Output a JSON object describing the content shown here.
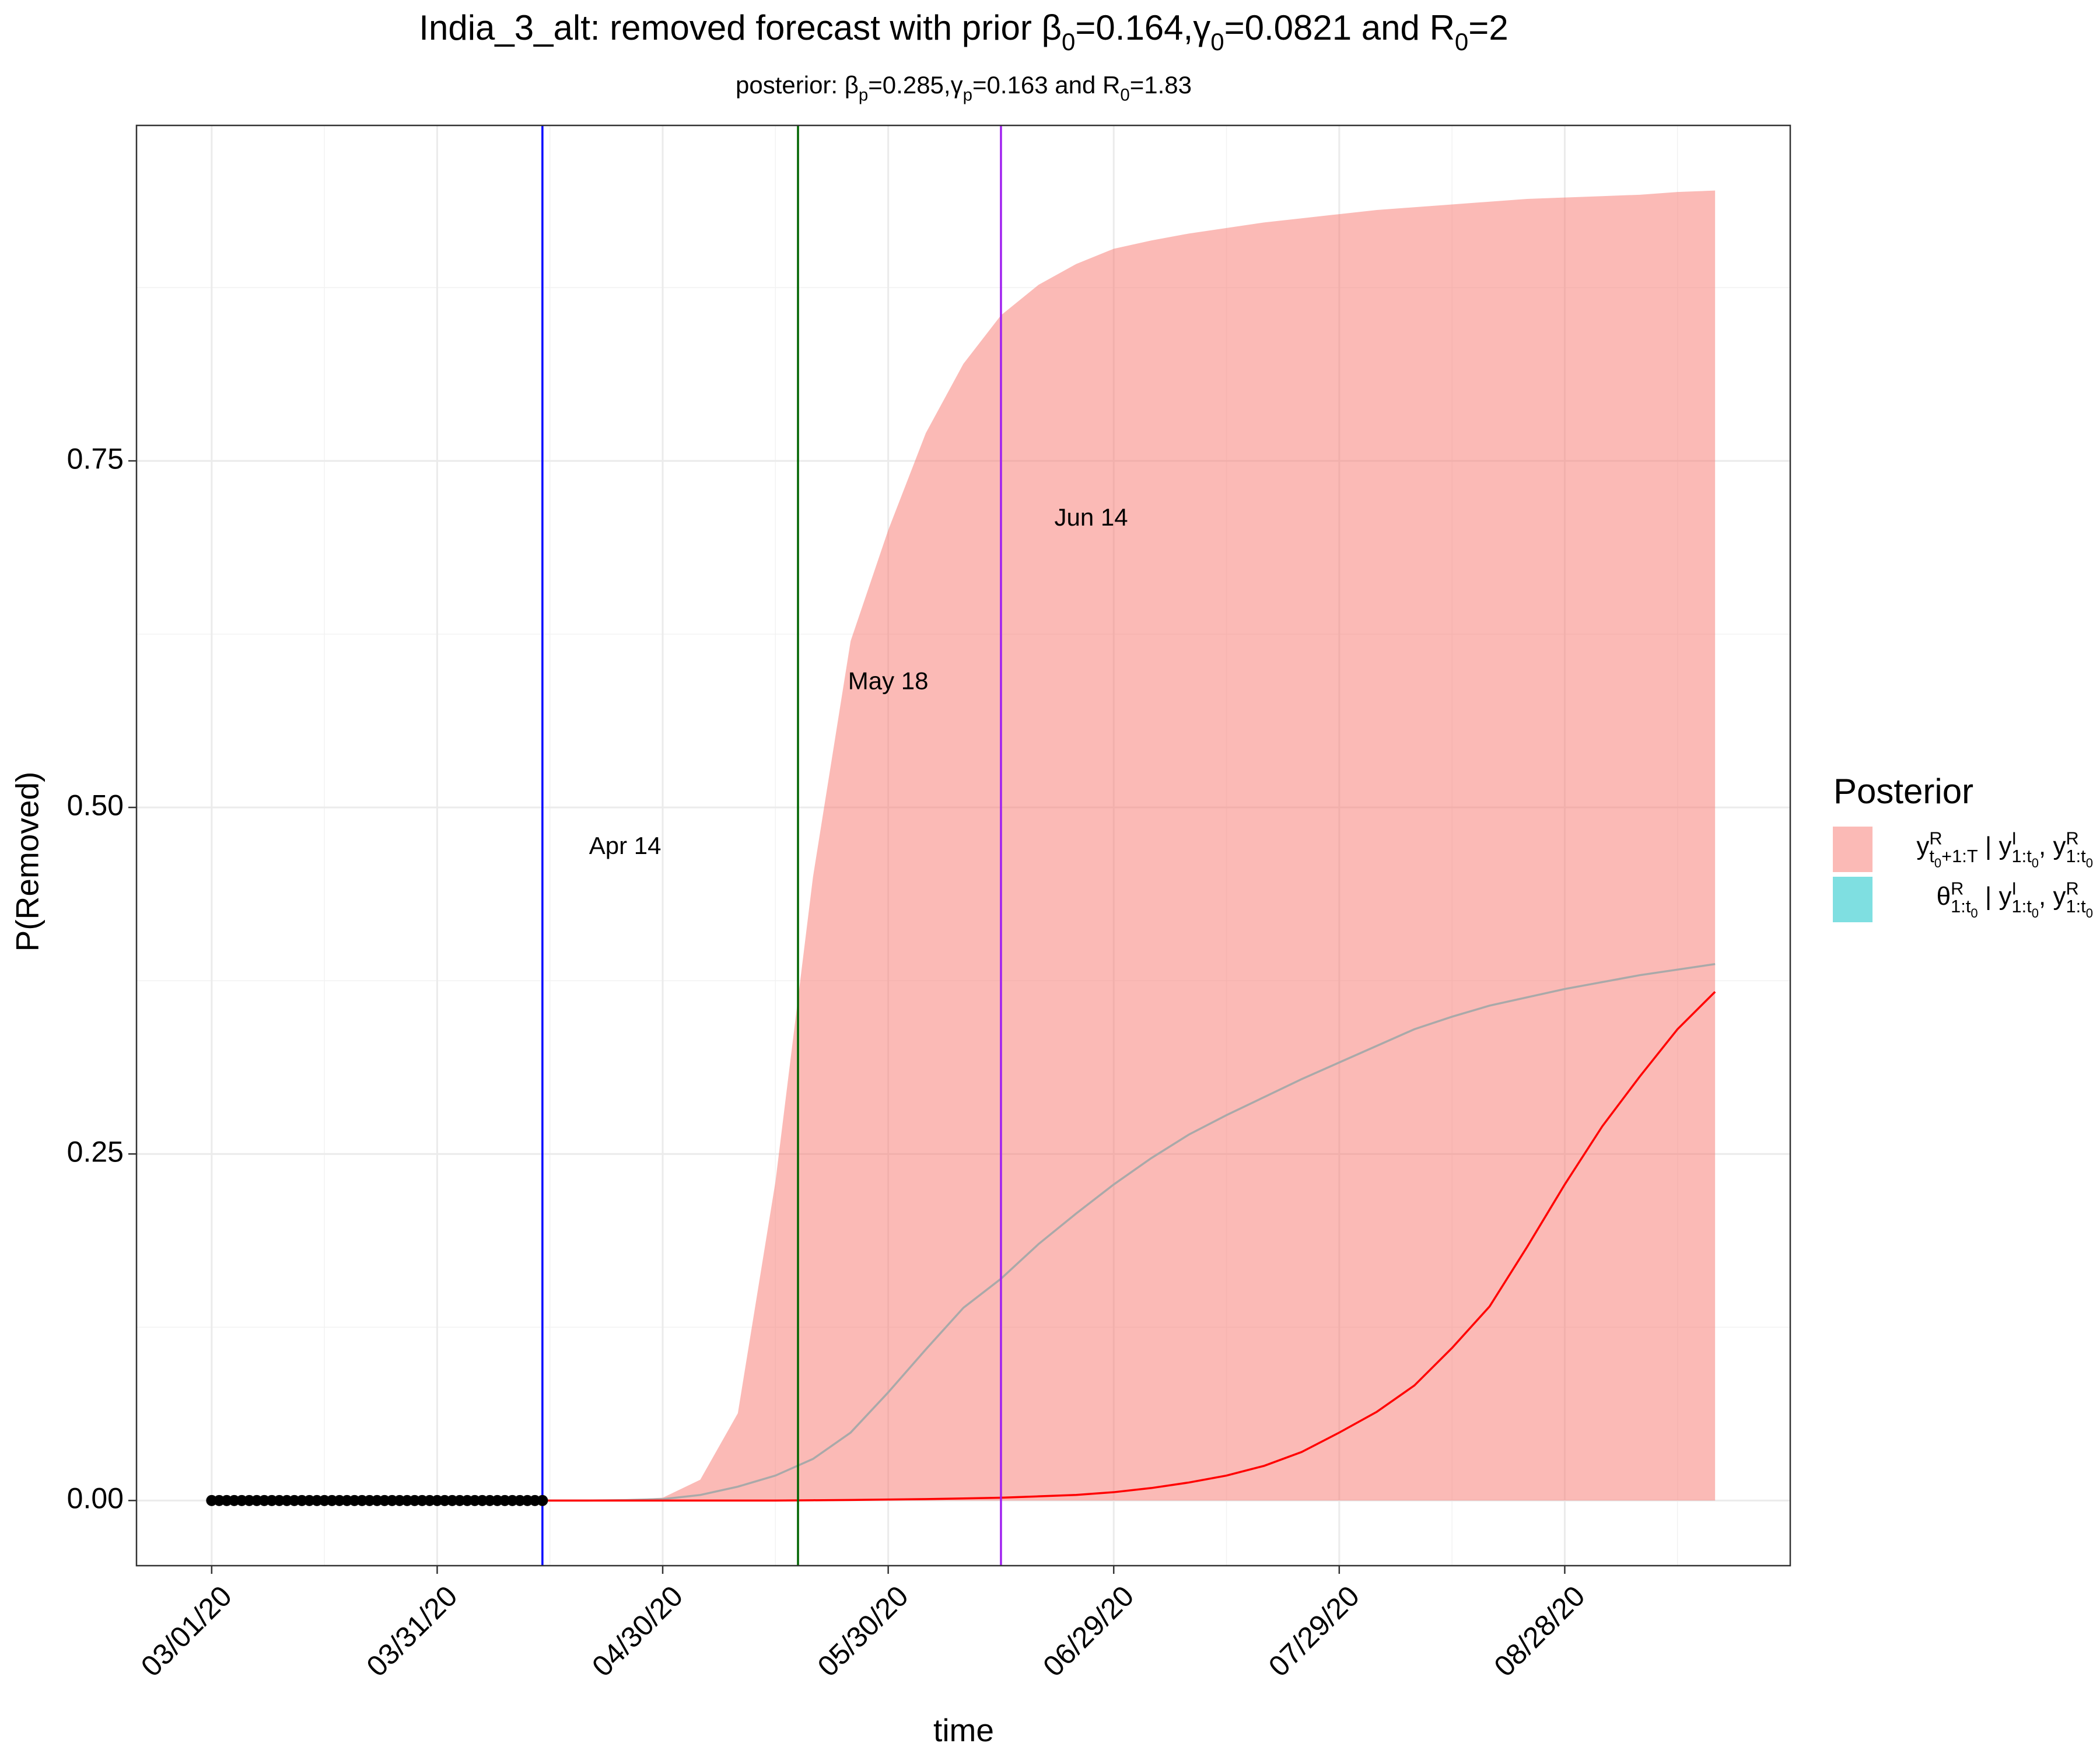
{
  "chart_data": {
    "type": "line",
    "title": [
      "India_3_alt: removed forecast with prior β",
      {
        "sub": "0"
      },
      "=0.164,γ",
      {
        "sub": "0"
      },
      "=0.0821 and R",
      {
        "sub": "0"
      },
      "=2"
    ],
    "subtitle": [
      "posterior: β",
      {
        "sub": "p"
      },
      "=0.285,γ",
      {
        "sub": "p"
      },
      "=0.163 and R",
      {
        "sub": "0"
      },
      "=1.83"
    ],
    "x_label": "time",
    "y_label": "P(Removed)",
    "xlim": [
      "2020-02-20",
      "2020-09-27"
    ],
    "ylim": [
      -0.047,
      0.992
    ],
    "xticks": [
      {
        "value": "2020-03-01",
        "label": "03/01/20"
      },
      {
        "value": "2020-03-31",
        "label": "03/31/20"
      },
      {
        "value": "2020-04-30",
        "label": "04/30/20"
      },
      {
        "value": "2020-05-30",
        "label": "05/30/20"
      },
      {
        "value": "2020-06-29",
        "label": "06/29/20"
      },
      {
        "value": "2020-07-29",
        "label": "07/29/20"
      },
      {
        "value": "2020-08-28",
        "label": "08/28/20"
      }
    ],
    "minor_xticks": [
      "2020-03-16",
      "2020-04-15",
      "2020-05-15",
      "2020-06-14",
      "2020-07-14",
      "2020-08-13",
      "2020-09-12"
    ],
    "yticks": [
      {
        "value": 0,
        "label": "0.00"
      },
      {
        "value": 0.25,
        "label": "0.25"
      },
      {
        "value": 0.5,
        "label": "0.50"
      },
      {
        "value": 0.75,
        "label": "0.75"
      }
    ],
    "minor_yticks": [
      0.125,
      0.375,
      0.625,
      0.875
    ],
    "grid": true,
    "x": [
      "2020-04-14",
      "2020-04-20",
      "2020-04-25",
      "2020-04-30",
      "2020-05-05",
      "2020-05-10",
      "2020-05-15",
      "2020-05-20",
      "2020-05-25",
      "2020-05-30",
      "2020-06-04",
      "2020-06-09",
      "2020-06-14",
      "2020-06-19",
      "2020-06-24",
      "2020-06-29",
      "2020-07-04",
      "2020-07-09",
      "2020-07-14",
      "2020-07-19",
      "2020-07-24",
      "2020-07-29",
      "2020-08-03",
      "2020-08-08",
      "2020-08-13",
      "2020-08-18",
      "2020-08-23",
      "2020-08-28",
      "2020-09-02",
      "2020-09-07",
      "2020-09-12",
      "2020-09-17"
    ],
    "series": [
      {
        "kind": "ribbon",
        "color": "#F8766D",
        "alpha": 0.5,
        "lower": [
          0,
          0,
          0,
          0,
          0,
          0,
          0,
          0,
          0,
          0,
          0,
          0,
          0,
          0,
          0,
          0,
          0,
          0,
          0,
          0,
          0,
          0,
          0,
          0,
          0,
          0,
          0,
          0,
          0,
          0,
          0,
          0
        ],
        "upper": [
          0,
          0,
          0.0005,
          0.002,
          0.015,
          0.063,
          0.23,
          0.45,
          0.62,
          0.7,
          0.77,
          0.82,
          0.855,
          0.877,
          0.892,
          0.903,
          0.909,
          0.914,
          0.918,
          0.922,
          0.925,
          0.928,
          0.931,
          0.933,
          0.935,
          0.937,
          0.939,
          0.94,
          0.941,
          0.942,
          0.944,
          0.945
        ]
      },
      {
        "kind": "line",
        "color": "#A9A9A9",
        "values": [
          0,
          0,
          0.0003,
          0.001,
          0.004,
          0.01,
          0.018,
          0.03,
          0.049,
          0.078,
          0.109,
          0.139,
          0.16,
          0.185,
          0.207,
          0.228,
          0.247,
          0.264,
          0.278,
          0.291,
          0.304,
          0.316,
          0.328,
          0.34,
          0.349,
          0.357,
          0.363,
          0.369,
          0.374,
          0.379,
          0.383,
          0.387
        ]
      },
      {
        "kind": "line",
        "color": "#FF0000",
        "values": [
          0,
          0,
          0,
          0,
          0,
          0,
          0,
          0.0002,
          0.0004,
          0.0007,
          0.001,
          0.0015,
          0.002,
          0.003,
          0.004,
          0.006,
          0.009,
          0.013,
          0.018,
          0.025,
          0.035,
          0.049,
          0.064,
          0.083,
          0.11,
          0.14,
          0.183,
          0.228,
          0.27,
          0.306,
          0.34,
          0.367
        ]
      },
      {
        "kind": "points",
        "color": "#000000",
        "x": [
          "2020-03-01",
          "2020-03-02",
          "2020-03-03",
          "2020-03-04",
          "2020-03-05",
          "2020-03-06",
          "2020-03-07",
          "2020-03-08",
          "2020-03-09",
          "2020-03-10",
          "2020-03-11",
          "2020-03-12",
          "2020-03-13",
          "2020-03-14",
          "2020-03-15",
          "2020-03-16",
          "2020-03-17",
          "2020-03-18",
          "2020-03-19",
          "2020-03-20",
          "2020-03-21",
          "2020-03-22",
          "2020-03-23",
          "2020-03-24",
          "2020-03-25",
          "2020-03-26",
          "2020-03-27",
          "2020-03-28",
          "2020-03-29",
          "2020-03-30",
          "2020-03-31",
          "2020-04-01",
          "2020-04-02",
          "2020-04-03",
          "2020-04-04",
          "2020-04-05",
          "2020-04-06",
          "2020-04-07",
          "2020-04-08",
          "2020-04-09",
          "2020-04-10",
          "2020-04-11",
          "2020-04-12",
          "2020-04-13",
          "2020-04-14"
        ],
        "values": [
          0,
          0,
          0,
          0,
          0,
          0,
          0,
          0,
          0,
          0,
          0,
          0,
          0,
          0,
          0,
          0,
          0,
          0,
          0,
          0,
          0,
          0,
          0,
          0,
          0,
          0,
          0,
          0,
          0,
          0,
          0,
          0,
          0,
          0,
          0,
          0,
          0,
          0,
          0,
          0,
          0,
          0,
          0,
          0,
          0
        ]
      }
    ],
    "vlines": [
      {
        "x": "2020-04-14",
        "color": "#0000FF",
        "label": "Apr 14",
        "label_x": "2020-04-25",
        "label_y": 0.471
      },
      {
        "x": "2020-05-18",
        "color": "#006400",
        "label": "May 18",
        "label_x": "2020-05-30",
        "label_y": 0.59
      },
      {
        "x": "2020-06-14",
        "color": "#A020F0",
        "label": "Jun 14",
        "label_x": "2020-06-26",
        "label_y": 0.708
      }
    ],
    "legend": {
      "title": "Posterior",
      "entries": [
        {
          "color": "#F8766D",
          "alpha": 0.5,
          "label": [
            "y",
            {
              "sup": "R",
              "sub": "t"
            },
            {
              "subsub": "0"
            },
            {
              "sub": "+1:T"
            },
            " | y",
            {
              "sup": "I",
              "sub": "1:t"
            },
            {
              "subsub": "0"
            },
            ", y",
            {
              "sup": "R",
              "sub": "1:t"
            },
            {
              "subsub": "0"
            }
          ]
        },
        {
          "color": "#00BFC4",
          "alpha": 0.5,
          "label": [
            "θ",
            {
              "sup": "R",
              "sub": "1:t"
            },
            {
              "subsub": "0"
            },
            " | y",
            {
              "sup": "I",
              "sub": "1:t"
            },
            {
              "subsub": "0"
            },
            ", y",
            {
              "sup": "R",
              "sub": "1:t"
            },
            {
              "subsub": "0"
            }
          ]
        }
      ]
    }
  }
}
